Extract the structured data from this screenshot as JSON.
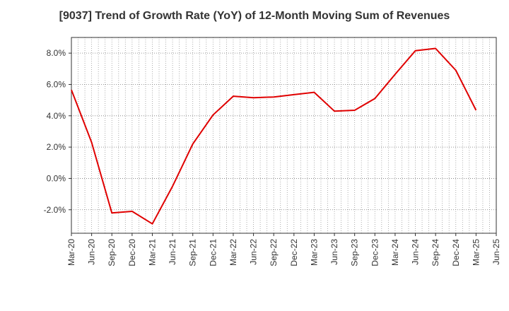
{
  "chart_data": {
    "type": "line",
    "title": "[9037]  Trend of Growth Rate (YoY) of 12-Month Moving Sum of Revenues",
    "xlabel": "",
    "ylabel": "",
    "x_tick_labels": [
      "Mar-20",
      "Jun-20",
      "Sep-20",
      "Dec-20",
      "Mar-21",
      "Jun-21",
      "Sep-21",
      "Dec-21",
      "Mar-22",
      "Jun-22",
      "Sep-22",
      "Dec-22",
      "Mar-23",
      "Jun-23",
      "Sep-23",
      "Dec-23",
      "Mar-24",
      "Jun-24",
      "Sep-24",
      "Dec-24",
      "Mar-25",
      "Jun-25"
    ],
    "y_ticks": [
      -2.0,
      0.0,
      2.0,
      4.0,
      6.0,
      8.0
    ],
    "y_tick_labels": [
      "-2.0%",
      "0.0%",
      "2.0%",
      "4.0%",
      "6.0%",
      "8.0%"
    ],
    "ylim": [
      -3.5,
      9.0
    ],
    "grid": true,
    "series": [
      {
        "color": "#e00000",
        "x": [
          "Mar-20",
          "Jun-20",
          "Sep-20",
          "Dec-20",
          "Mar-21",
          "Jun-21",
          "Sep-21",
          "Dec-21",
          "Mar-22",
          "Jun-22",
          "Sep-22",
          "Dec-22",
          "Mar-23",
          "Jun-23",
          "Sep-23",
          "Dec-23",
          "Mar-24",
          "Jun-24",
          "Sep-24",
          "Dec-24",
          "Mar-25"
        ],
        "values": [
          5.65,
          2.3,
          -2.2,
          -2.1,
          -2.9,
          -0.5,
          2.2,
          4.05,
          5.25,
          5.15,
          5.2,
          5.35,
          5.5,
          4.3,
          4.35,
          5.1,
          6.65,
          8.15,
          8.3,
          6.9,
          4.35
        ]
      }
    ]
  }
}
